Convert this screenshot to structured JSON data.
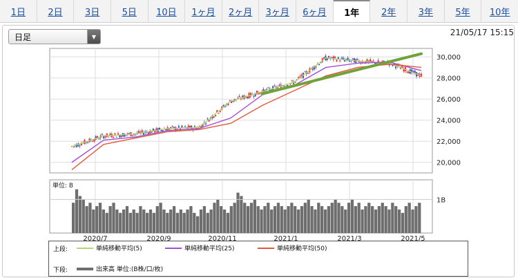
{
  "tabs": [
    {
      "label": "1日"
    },
    {
      "label": "2日"
    },
    {
      "label": "3日"
    },
    {
      "label": "5日"
    },
    {
      "label": "10日"
    },
    {
      "label": "1ヶ月"
    },
    {
      "label": "2ヶ月"
    },
    {
      "label": "3ヶ月"
    },
    {
      "label": "6ヶ月"
    },
    {
      "label": "1年",
      "active": true
    },
    {
      "label": "2年"
    },
    {
      "label": "3年"
    },
    {
      "label": "5年"
    },
    {
      "label": "10年"
    }
  ],
  "selector": {
    "value": "日足"
  },
  "timestamp": "21/05/17 15:15",
  "colors": {
    "ma5": "#b9d56a",
    "ma25": "#a64bd6",
    "ma50": "#e05a3a",
    "trend": "#6fa33a",
    "up": "#e0303a",
    "down": "#2a54c8",
    "volume": "#6e6e6e"
  },
  "chart_data": [
    {
      "type": "line",
      "x_ticks": [
        "2020/7",
        "2020/9",
        "2020/11",
        "2021/1",
        "2021/3",
        "2021/5"
      ],
      "y_ticks": [
        "30,000",
        "28,000",
        "26,000",
        "24,000",
        "22,000",
        "20,000"
      ],
      "ylim": [
        19000,
        30800
      ],
      "x": [
        "2020/6",
        "2020/7",
        "2020/8",
        "2020/9",
        "2020/10",
        "2020/11",
        "2020/12",
        "2021/1",
        "2021/2",
        "2021/3",
        "2021/4",
        "2021/5"
      ],
      "series": [
        {
          "name": "単純移動平均(5)",
          "values": [
            21500,
            22500,
            22700,
            23200,
            23300,
            25800,
            26700,
            27600,
            29900,
            29600,
            29400,
            28200
          ]
        },
        {
          "name": "単純移動平均(25)",
          "values": [
            20000,
            22100,
            22400,
            23000,
            23200,
            24200,
            26400,
            27300,
            29000,
            29400,
            29500,
            28700
          ]
        },
        {
          "name": "単純移動平均(50)",
          "values": [
            19300,
            21700,
            22300,
            22900,
            23100,
            23700,
            25400,
            26800,
            28200,
            29000,
            29300,
            29000
          ]
        }
      ],
      "trendline": {
        "from": [
          "2020/12",
          26500
        ],
        "to": [
          "2021/5",
          30300
        ]
      }
    },
    {
      "type": "bar",
      "unit_label": "単位: B",
      "y_ticks": [
        "1B"
      ],
      "values": [
        0.9,
        1.3,
        1.1,
        1.0,
        0.8,
        0.9,
        0.7,
        0.8,
        0.9,
        0.7,
        0.6,
        0.8,
        0.9,
        0.7,
        0.6,
        0.7,
        0.8,
        0.6,
        0.7,
        0.6,
        0.8,
        0.7,
        0.6,
        0.7,
        0.6,
        0.8,
        0.9,
        0.7,
        0.6,
        0.7,
        0.8,
        0.6,
        0.7,
        0.6,
        0.7,
        0.8,
        0.6,
        0.5,
        0.7,
        0.8,
        0.6,
        0.7,
        0.9,
        1.0,
        0.8,
        0.7,
        0.6,
        0.8,
        0.9,
        1.2,
        1.1,
        0.9,
        0.8,
        0.9,
        1.0,
        0.8,
        0.7,
        0.8,
        0.9,
        0.7,
        0.8,
        0.9,
        0.8,
        0.7,
        0.8,
        0.9,
        0.8,
        0.7,
        0.8,
        0.9,
        1.0,
        0.8,
        0.7,
        0.9,
        0.8,
        0.7,
        0.8,
        0.9,
        1.0,
        0.9,
        0.8,
        0.7,
        0.9,
        1.0,
        0.8,
        0.9,
        0.7,
        0.8,
        0.9,
        0.8,
        0.7,
        0.8,
        0.9,
        0.8,
        0.7,
        0.9,
        0.8,
        0.7,
        0.6,
        0.8,
        0.9,
        0.7,
        0.8,
        0.9
      ]
    }
  ],
  "legend": {
    "upper_label": "上段:",
    "lower_label": "下段:",
    "ma5": "単純移動平均(5)",
    "ma25": "単純移動平均(25)",
    "ma50": "単純移動平均(50)",
    "volume": "出来高 単位:(B株/口/枚)"
  }
}
